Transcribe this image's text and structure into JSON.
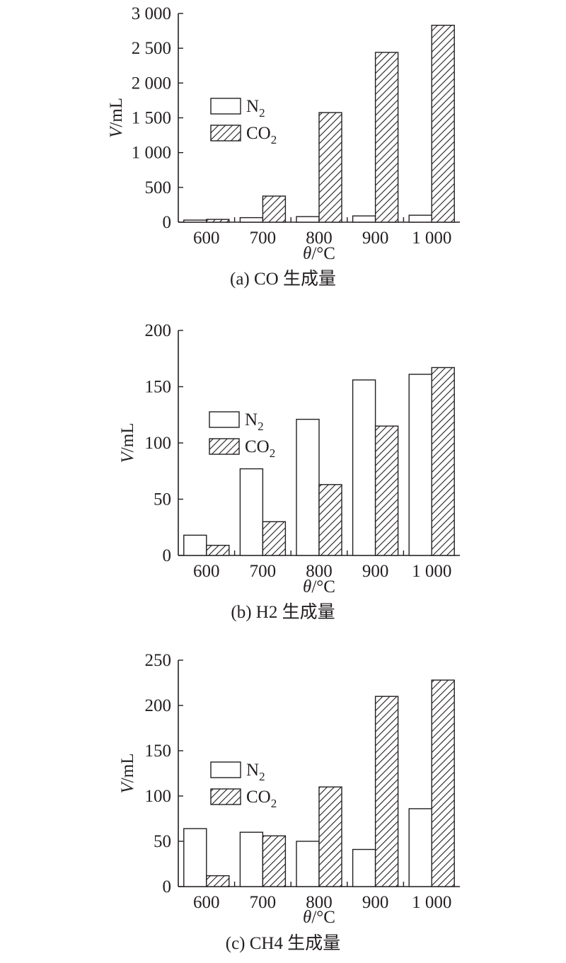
{
  "chart_data": [
    {
      "type": "bar",
      "caption": "(a) CO 生成量",
      "categories": [
        "600",
        "700",
        "800",
        "900",
        "1 000"
      ],
      "series": [
        {
          "name": "N2",
          "label_main": "N",
          "label_sub": "2",
          "values": [
            30,
            65,
            80,
            90,
            100
          ],
          "fill": "#ffffff"
        },
        {
          "name": "CO2",
          "label_main": "CO",
          "label_sub": "2",
          "values": [
            40,
            375,
            1575,
            2440,
            2830
          ],
          "fill": "hatch"
        }
      ],
      "ylim": [
        0,
        3000
      ],
      "yticks": [
        0,
        500,
        1000,
        1500,
        2000,
        2500,
        3000
      ],
      "ytick_labels": [
        "0",
        "500",
        "1 000",
        "1 500",
        "2 000",
        "2 500",
        "3 000"
      ],
      "ylabel_var": "V",
      "ylabel_unit": "/mL",
      "xlabel_var": "θ",
      "xlabel_unit": "/°C"
    },
    {
      "type": "bar",
      "caption": "(b) H2 生成量",
      "categories": [
        "600",
        "700",
        "800",
        "900",
        "1 000"
      ],
      "series": [
        {
          "name": "N2",
          "label_main": "N",
          "label_sub": "2",
          "values": [
            18,
            77,
            121,
            156,
            161
          ],
          "fill": "#ffffff"
        },
        {
          "name": "CO2",
          "label_main": "CO",
          "label_sub": "2",
          "values": [
            9,
            30,
            63,
            115,
            167
          ],
          "fill": "hatch"
        }
      ],
      "ylim": [
        0,
        200
      ],
      "yticks": [
        0,
        50,
        100,
        150,
        200
      ],
      "ytick_labels": [
        "0",
        "50",
        "100",
        "150",
        "200"
      ],
      "ylabel_var": "V",
      "ylabel_unit": "/mL",
      "xlabel_var": "θ",
      "xlabel_unit": "/°C"
    },
    {
      "type": "bar",
      "caption": "(c) CH4 生成量",
      "categories": [
        "600",
        "700",
        "800",
        "900",
        "1 000"
      ],
      "series": [
        {
          "name": "N2",
          "label_main": "N",
          "label_sub": "2",
          "values": [
            64,
            60,
            50,
            41,
            86
          ],
          "fill": "#ffffff"
        },
        {
          "name": "CO2",
          "label_main": "CO",
          "label_sub": "2",
          "values": [
            12,
            56,
            110,
            210,
            228
          ],
          "fill": "hatch"
        }
      ],
      "ylim": [
        0,
        250
      ],
      "yticks": [
        0,
        50,
        100,
        150,
        200,
        250
      ],
      "ytick_labels": [
        "0",
        "50",
        "100",
        "150",
        "200",
        "250"
      ],
      "ylabel_var": "V",
      "ylabel_unit": "/mL",
      "xlabel_var": "θ",
      "xlabel_unit": "/°C"
    }
  ],
  "colors": {
    "line": "#231f20",
    "background": "#ffffff"
  }
}
